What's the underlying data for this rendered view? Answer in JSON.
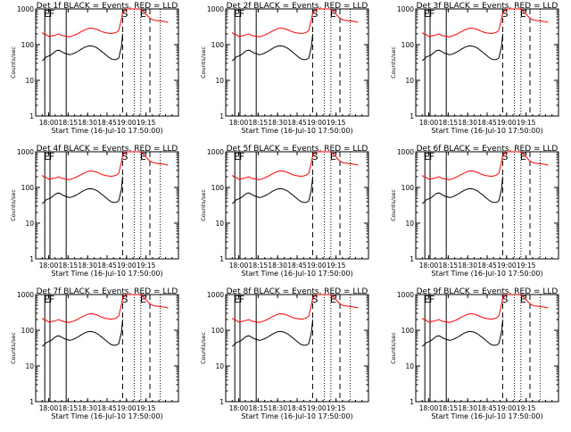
{
  "chart_data": [
    {
      "type": "line",
      "title": "Det 1f BLACK = Events, RED = LLD",
      "xlabel": "Start Time (16-Jul-10 17:50:00)",
      "ylabel": "Counts/sec"
    },
    {
      "type": "line",
      "title": "Det 2f BLACK = Events, RED = LLD",
      "xlabel": "Start Time (16-Jul-10 17:50:00)",
      "ylabel": "Counts/sec"
    },
    {
      "type": "line",
      "title": "Det 3f BLACK = Events, RED = LLD",
      "xlabel": "Start Time (16-Jul-10 17:50:00)",
      "ylabel": "Counts/sec"
    },
    {
      "type": "line",
      "title": "Det 4f BLACK = Events, RED = LLD",
      "xlabel": "Start Time (16-Jul-10 17:50:00)",
      "ylabel": "Counts/sec"
    },
    {
      "type": "line",
      "title": "Det 5f BLACK = Events, RED = LLD",
      "xlabel": "Start Time (16-Jul-10 17:50:00)",
      "ylabel": "Counts/sec"
    },
    {
      "type": "line",
      "title": "Det 6f BLACK = Events, RED = LLD",
      "xlabel": "Start Time (16-Jul-10 17:50:00)",
      "ylabel": "Counts/sec"
    },
    {
      "type": "line",
      "title": "Det 7f BLACK = Events, RED = LLD",
      "xlabel": "Start Time (16-Jul-10 17:50:00)",
      "ylabel": "Counts/sec"
    },
    {
      "type": "line",
      "title": "Det 8f BLACK = Events, RED = LLD",
      "xlabel": "Start Time (16-Jul-10 17:50:00)",
      "ylabel": "Counts/sec"
    },
    {
      "type": "line",
      "title": "Det 9f BLACK = Events, RED = LLD",
      "xlabel": "Start Time (16-Jul-10 17:50:00)",
      "ylabel": "Counts/sec"
    }
  ],
  "shared": {
    "x_range_min": [
      0,
      110
    ],
    "y_range": [
      1,
      1000
    ],
    "y_scale": "log",
    "x_ticks": [
      {
        "v": 10,
        "label": "18:00"
      },
      {
        "v": 25,
        "label": "18:15"
      },
      {
        "v": 40,
        "label": "18:30"
      },
      {
        "v": 55,
        "label": "18:45"
      },
      {
        "v": 70,
        "label": "19:00"
      },
      {
        "v": 85,
        "label": "19:15"
      }
    ],
    "y_ticks": [
      {
        "v": 1,
        "label": "1"
      },
      {
        "v": 10,
        "label": "10"
      },
      {
        "v": 100,
        "label": "100"
      },
      {
        "v": 1000,
        "label": "1000"
      }
    ],
    "series_colors": {
      "events": "#000000",
      "lld": "#ff0000"
    },
    "markers": [
      {
        "label": "E",
        "x": 7,
        "style": "solid"
      },
      {
        "label": "F",
        "x": 11,
        "style": "solid"
      },
      {
        "label": "",
        "x": 23.5,
        "style": "solid"
      },
      {
        "label": "S",
        "x": 67,
        "style": "dashed"
      },
      {
        "label": "",
        "x": 76,
        "style": "dotted"
      },
      {
        "label": "E",
        "x": 81,
        "style": "dotted"
      },
      {
        "label": "",
        "x": 88,
        "style": "dashed"
      },
      {
        "label": "",
        "x": 96,
        "style": "dotted"
      }
    ],
    "events_points": [
      [
        5,
        35
      ],
      [
        6,
        38
      ],
      [
        7,
        40
      ],
      [
        8,
        45
      ],
      [
        10,
        48
      ],
      [
        12,
        52
      ],
      [
        14,
        60
      ],
      [
        16,
        68
      ],
      [
        18,
        70
      ],
      [
        20,
        64
      ],
      [
        22,
        58
      ],
      [
        24,
        55
      ],
      [
        26,
        52
      ],
      [
        28,
        54
      ],
      [
        30,
        58
      ],
      [
        32,
        63
      ],
      [
        34,
        70
      ],
      [
        36,
        78
      ],
      [
        38,
        85
      ],
      [
        40,
        90
      ],
      [
        42,
        92
      ],
      [
        44,
        90
      ],
      [
        46,
        85
      ],
      [
        48,
        78
      ],
      [
        50,
        68
      ],
      [
        52,
        60
      ],
      [
        54,
        52
      ],
      [
        56,
        45
      ],
      [
        58,
        40
      ],
      [
        60,
        38
      ],
      [
        62,
        38
      ],
      [
        64,
        42
      ],
      [
        66,
        85
      ],
      [
        67,
        200
      ]
    ],
    "lld_points": [
      [
        5,
        220
      ],
      [
        6,
        200
      ],
      [
        7,
        200
      ],
      [
        8,
        190
      ],
      [
        10,
        170
      ],
      [
        12,
        175
      ],
      [
        14,
        180
      ],
      [
        16,
        190
      ],
      [
        18,
        200
      ],
      [
        20,
        180
      ],
      [
        22,
        175
      ],
      [
        24,
        170
      ],
      [
        26,
        165
      ],
      [
        28,
        175
      ],
      [
        30,
        185
      ],
      [
        32,
        200
      ],
      [
        34,
        220
      ],
      [
        36,
        240
      ],
      [
        38,
        260
      ],
      [
        40,
        280
      ],
      [
        42,
        290
      ],
      [
        44,
        285
      ],
      [
        46,
        275
      ],
      [
        48,
        260
      ],
      [
        50,
        240
      ],
      [
        52,
        225
      ],
      [
        54,
        215
      ],
      [
        56,
        210
      ],
      [
        58,
        205
      ],
      [
        60,
        210
      ],
      [
        62,
        220
      ],
      [
        64,
        250
      ],
      [
        66,
        500
      ],
      [
        67,
        800
      ],
      [
        70,
        1000
      ],
      [
        80,
        1000
      ],
      [
        82,
        900
      ],
      [
        84,
        800
      ],
      [
        86,
        650
      ],
      [
        88,
        550
      ],
      [
        90,
        500
      ],
      [
        92,
        480
      ],
      [
        94,
        470
      ],
      [
        96,
        460
      ],
      [
        98,
        450
      ],
      [
        100,
        440
      ],
      [
        102,
        420
      ]
    ]
  }
}
